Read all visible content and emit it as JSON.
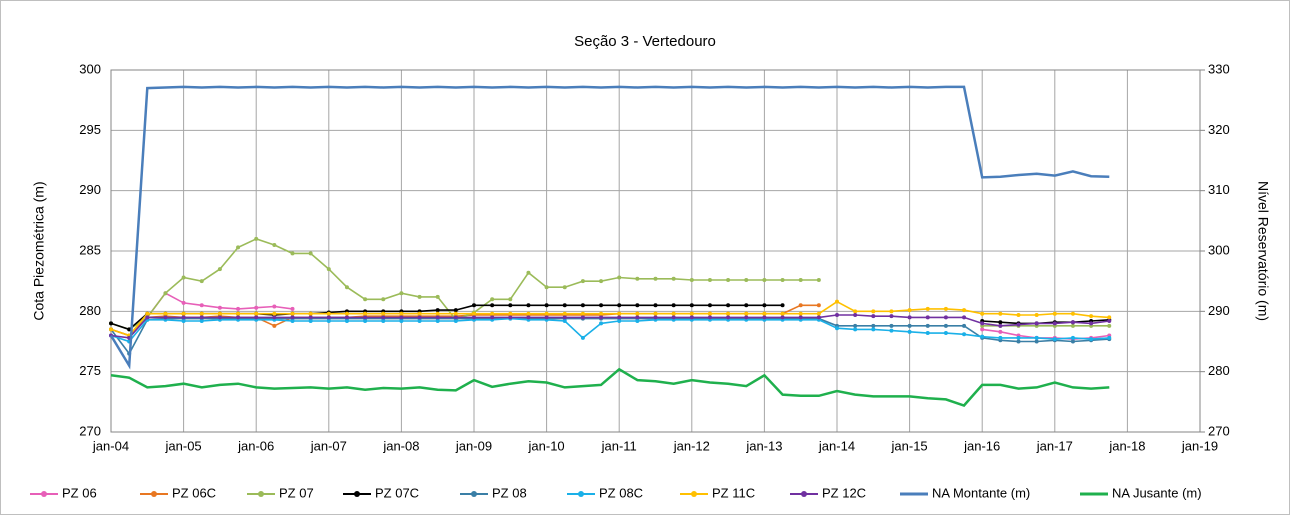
{
  "chart_data": {
    "type": "line",
    "title": "Seção 3 - Vertedouro",
    "ylabel": "Cota Piezométrica (m)",
    "y2label": "Nível Reservatório (m)",
    "ylim": [
      270,
      300
    ],
    "yticks": [
      270,
      275,
      280,
      285,
      290,
      295,
      300
    ],
    "y2lim": [
      270,
      330
    ],
    "y2ticks": [
      270,
      280,
      290,
      300,
      310,
      320,
      330
    ],
    "xlim": [
      "2004-01",
      "2019-01"
    ],
    "xticks": [
      {
        "value": "2004-01",
        "label": "jan-04"
      },
      {
        "value": "2005-01",
        "label": "jan-05"
      },
      {
        "value": "2006-01",
        "label": "jan-06"
      },
      {
        "value": "2007-01",
        "label": "jan-07"
      },
      {
        "value": "2008-01",
        "label": "jan-08"
      },
      {
        "value": "2009-01",
        "label": "jan-09"
      },
      {
        "value": "2010-01",
        "label": "jan-10"
      },
      {
        "value": "2011-01",
        "label": "jan-11"
      },
      {
        "value": "2012-01",
        "label": "jan-12"
      },
      {
        "value": "2013-01",
        "label": "jan-13"
      },
      {
        "value": "2014-01",
        "label": "jan-14"
      },
      {
        "value": "2015-01",
        "label": "jan-15"
      },
      {
        "value": "2016-01",
        "label": "jan-16"
      },
      {
        "value": "2017-01",
        "label": "jan-17"
      },
      {
        "value": "2018-01",
        "label": "jan-18"
      },
      {
        "value": "2019-01",
        "label": "jan-19"
      }
    ],
    "grid": true,
    "legend": "bottom",
    "x": [
      "2004-01",
      "2004-04",
      "2004-07",
      "2004-10",
      "2005-01",
      "2005-04",
      "2005-07",
      "2005-10",
      "2006-01",
      "2006-04",
      "2006-07",
      "2006-10",
      "2007-01",
      "2007-04",
      "2007-07",
      "2007-10",
      "2008-01",
      "2008-04",
      "2008-07",
      "2008-10",
      "2009-01",
      "2009-04",
      "2009-07",
      "2009-10",
      "2010-01",
      "2010-04",
      "2010-07",
      "2010-10",
      "2011-01",
      "2011-04",
      "2011-07",
      "2011-10",
      "2012-01",
      "2012-04",
      "2012-07",
      "2012-10",
      "2013-01",
      "2013-04",
      "2013-07",
      "2013-10",
      "2014-01",
      "2014-04",
      "2014-07",
      "2014-10",
      "2015-01",
      "2015-04",
      "2015-07",
      "2015-10",
      "2016-01",
      "2016-04",
      "2016-07",
      "2016-10",
      "2017-01",
      "2017-04",
      "2017-07",
      "2017-10"
    ],
    "series": [
      {
        "name": "PZ 06",
        "color": "#e75fb8",
        "values": [
          278.5,
          278,
          279.5,
          281.5,
          280.7,
          280.5,
          280.3,
          280.2,
          280.3,
          280.4,
          280.2,
          null,
          null,
          null,
          null,
          null,
          null,
          null,
          null,
          null,
          null,
          null,
          null,
          null,
          null,
          null,
          null,
          null,
          null,
          null,
          null,
          null,
          null,
          null,
          null,
          null,
          null,
          null,
          null,
          null,
          null,
          null,
          null,
          null,
          null,
          null,
          null,
          null,
          278.5,
          278.3,
          278,
          277.8,
          277.8,
          277.7,
          277.8,
          278
        ]
      },
      {
        "name": "PZ 06C",
        "color": "#e87722",
        "values": [
          278.5,
          278,
          279.5,
          279.6,
          279.5,
          279.5,
          279.6,
          279.5,
          279.5,
          278.8,
          279.5,
          279.5,
          279.5,
          279.5,
          279.6,
          279.6,
          279.6,
          279.6,
          279.6,
          279.6,
          279.7,
          279.7,
          279.7,
          279.7,
          279.7,
          279.7,
          279.7,
          279.7,
          279.8,
          279.8,
          279.8,
          279.8,
          279.8,
          279.8,
          279.8,
          279.8,
          279.8,
          279.8,
          280.5,
          280.5,
          null,
          null,
          null,
          null,
          null,
          null,
          null,
          null,
          null,
          null,
          null,
          null,
          null,
          null,
          null,
          null
        ]
      },
      {
        "name": "PZ 07",
        "color": "#9bbb59",
        "values": [
          279,
          278.5,
          279.5,
          281.5,
          282.8,
          282.5,
          283.5,
          285.3,
          286,
          285.5,
          284.8,
          284.8,
          283.5,
          282,
          281,
          281,
          281.5,
          281.2,
          281.2,
          279.3,
          279.9,
          281,
          281,
          283.2,
          282,
          282,
          282.5,
          282.5,
          282.8,
          282.7,
          282.7,
          282.7,
          282.6,
          282.6,
          282.6,
          282.6,
          282.6,
          282.6,
          282.6,
          282.6,
          null,
          null,
          null,
          null,
          null,
          null,
          null,
          null,
          278.8,
          278.8,
          278.8,
          278.8,
          278.8,
          278.8,
          278.8,
          278.8
        ]
      },
      {
        "name": "PZ 07C",
        "color": "#000000",
        "values": [
          279,
          278.5,
          279.8,
          279.8,
          279.8,
          279.8,
          279.8,
          279.8,
          279.8,
          279.7,
          279.8,
          279.8,
          279.9,
          280,
          280,
          280,
          280,
          280,
          280.1,
          280.1,
          280.5,
          280.5,
          280.5,
          280.5,
          280.5,
          280.5,
          280.5,
          280.5,
          280.5,
          280.5,
          280.5,
          280.5,
          280.5,
          280.5,
          280.5,
          280.5,
          280.5,
          280.5,
          null,
          null,
          null,
          null,
          null,
          null,
          null,
          null,
          null,
          null,
          279.2,
          279.1,
          279,
          279,
          279.1,
          279.1,
          279.2,
          279.3
        ]
      },
      {
        "name": "PZ 08",
        "color": "#3a7fa6",
        "values": [
          278.5,
          276.5,
          279.3,
          279.4,
          279.4,
          279.4,
          279.4,
          279.4,
          279.4,
          279.4,
          279.4,
          279.4,
          279.4,
          279.4,
          279.4,
          279.4,
          279.4,
          279.4,
          279.4,
          279.4,
          279.4,
          279.4,
          279.4,
          279.4,
          279.4,
          279.4,
          279.4,
          279.4,
          279.4,
          279.4,
          279.4,
          279.4,
          279.4,
          279.4,
          279.4,
          279.4,
          279.4,
          279.4,
          279.4,
          279.4,
          278.8,
          278.8,
          278.8,
          278.8,
          278.8,
          278.8,
          278.8,
          278.8,
          277.8,
          277.6,
          277.5,
          277.5,
          277.6,
          277.5,
          277.6,
          277.7
        ]
      },
      {
        "name": "PZ 08C",
        "color": "#1ab0e8",
        "values": [
          278,
          277.5,
          279.3,
          279.3,
          279.2,
          279.2,
          279.3,
          279.3,
          279.3,
          279.3,
          279.2,
          279.2,
          279.2,
          279.2,
          279.2,
          279.2,
          279.2,
          279.2,
          279.2,
          279.2,
          279.3,
          279.3,
          279.4,
          279.3,
          279.3,
          279.2,
          277.8,
          279,
          279.2,
          279.2,
          279.3,
          279.3,
          279.3,
          279.3,
          279.3,
          279.3,
          279.3,
          279.3,
          279.3,
          279.3,
          278.6,
          278.5,
          278.5,
          278.4,
          278.3,
          278.2,
          278.2,
          278.1,
          277.9,
          277.8,
          277.8,
          277.8,
          277.7,
          277.8,
          277.7,
          277.8
        ]
      },
      {
        "name": "PZ 11C",
        "color": "#ffc000",
        "values": [
          278.5,
          278,
          279.8,
          279.8,
          279.8,
          279.8,
          279.8,
          279.8,
          279.8,
          279.8,
          279.8,
          279.8,
          279.8,
          279.8,
          279.8,
          279.8,
          279.8,
          279.8,
          279.8,
          279.8,
          279.8,
          279.8,
          279.8,
          279.8,
          279.8,
          279.8,
          279.8,
          279.8,
          279.8,
          279.8,
          279.8,
          279.8,
          279.8,
          279.8,
          279.8,
          279.8,
          279.8,
          279.8,
          279.8,
          279.8,
          280.8,
          280,
          280,
          280,
          280.1,
          280.2,
          280.2,
          280.1,
          279.8,
          279.8,
          279.7,
          279.7,
          279.8,
          279.8,
          279.6,
          279.5
        ]
      },
      {
        "name": "PZ 12C",
        "color": "#7030a0",
        "values": [
          278,
          277.8,
          279.5,
          279.5,
          279.5,
          279.5,
          279.5,
          279.5,
          279.5,
          279.5,
          279.5,
          279.5,
          279.5,
          279.5,
          279.5,
          279.5,
          279.5,
          279.5,
          279.5,
          279.5,
          279.5,
          279.5,
          279.5,
          279.5,
          279.5,
          279.5,
          279.5,
          279.5,
          279.5,
          279.5,
          279.5,
          279.5,
          279.5,
          279.5,
          279.5,
          279.5,
          279.5,
          279.5,
          279.5,
          279.5,
          279.7,
          279.7,
          279.6,
          279.6,
          279.5,
          279.5,
          279.5,
          279.5,
          279,
          278.8,
          278.9,
          279,
          279,
          279.1,
          279,
          279.2
        ]
      },
      {
        "name": "NA Montante (m)",
        "color": "#4a7ebb",
        "axis": "y2",
        "values": [
          286,
          281,
          327,
          327.1,
          327.2,
          327.1,
          327.2,
          327.1,
          327.2,
          327.1,
          327.2,
          327.1,
          327.2,
          327.1,
          327.2,
          327.1,
          327.2,
          327.1,
          327.2,
          327.1,
          327.2,
          327.1,
          327.2,
          327.1,
          327.2,
          327.1,
          327.2,
          327.1,
          327.2,
          327.1,
          327.2,
          327.1,
          327.2,
          327.1,
          327.2,
          327.1,
          327.2,
          327.1,
          327.2,
          327.1,
          327.2,
          327.1,
          327.2,
          327.1,
          327.2,
          327.1,
          327.2,
          327.2,
          312.2,
          312.3,
          312.6,
          312.8,
          312.5,
          313.2,
          312.4,
          312.3
        ]
      },
      {
        "name": "NA Jusante (m)",
        "color": "#1fb04d",
        "axis": "y2",
        "values": [
          279.4,
          279,
          277.4,
          277.6,
          278,
          277.4,
          277.8,
          278,
          277.4,
          277.2,
          277.3,
          277.4,
          277.2,
          277.4,
          277,
          277.3,
          277.2,
          277.4,
          277,
          276.9,
          278.6,
          277.5,
          278,
          278.4,
          278.2,
          277.4,
          277.6,
          277.8,
          280.4,
          278.6,
          278.4,
          278,
          278.6,
          278.2,
          278,
          277.6,
          279.4,
          276.2,
          276,
          276,
          276.8,
          276.2,
          275.9,
          275.9,
          275.9,
          275.6,
          275.4,
          274.4,
          277.8,
          277.8,
          277.2,
          277.4,
          278.2,
          277.4,
          277.2,
          277.4
        ]
      }
    ]
  }
}
